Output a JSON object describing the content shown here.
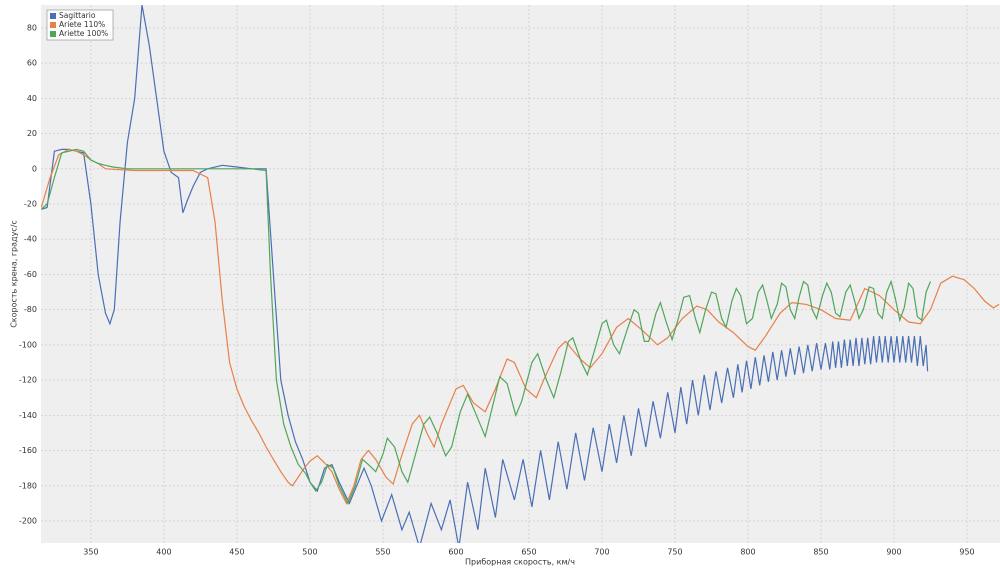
{
  "chart_data": {
    "type": "line",
    "xlabel": "Приборная скорость, км/ч",
    "ylabel": "Скорость крена, градус/с",
    "xlim": [
      315.8,
      972.6
    ],
    "ylim": [
      -212.5,
      93
    ],
    "xticks": [
      350,
      400,
      450,
      500,
      550,
      600,
      650,
      700,
      750,
      800,
      850,
      900,
      950
    ],
    "yticks": [
      -200,
      -180,
      -160,
      -140,
      -120,
      -100,
      -80,
      -60,
      -40,
      -20,
      0,
      20,
      40,
      60,
      80
    ],
    "grid": true,
    "legend": "top-left",
    "series": [
      {
        "name": "Sagittario",
        "color": "#4a6fb5",
        "x": [
          316,
          320,
          325,
          330,
          335,
          340,
          345,
          350,
          355,
          360,
          363,
          366,
          370,
          375,
          380,
          385,
          390,
          395,
          400,
          405,
          410,
          413,
          416,
          420,
          425,
          430,
          440,
          450,
          460,
          470,
          475,
          480,
          485,
          490,
          495,
          500,
          505,
          510,
          515,
          520,
          527,
          532,
          537,
          542,
          549,
          556,
          563,
          568,
          575,
          583,
          590,
          596,
          602,
          608,
          615,
          620,
          627,
          632,
          640,
          646,
          652,
          658,
          664,
          670,
          676,
          682,
          688,
          694,
          700,
          705,
          710,
          715,
          720,
          725,
          730,
          735,
          740,
          745,
          750,
          754,
          758,
          762,
          766,
          770,
          774,
          778,
          782,
          786,
          790,
          793,
          796,
          799,
          802,
          805,
          808,
          811,
          814,
          817,
          820,
          823,
          826,
          829,
          832,
          835,
          838,
          841,
          844,
          847,
          850,
          853,
          856,
          858,
          860,
          862,
          864,
          866,
          868,
          870,
          872,
          874,
          876,
          878,
          880,
          882,
          884,
          886,
          888,
          890,
          892,
          894,
          896,
          898,
          900,
          902,
          904,
          906,
          908,
          910,
          912,
          914,
          916,
          918,
          920,
          922,
          923
        ],
        "values": [
          -23,
          -22,
          10,
          11,
          11,
          10,
          9,
          -20,
          -60,
          -82,
          -88,
          -80,
          -30,
          15,
          40,
          93,
          70,
          40,
          10,
          -2,
          -5,
          -25,
          -18,
          -10,
          -2,
          0,
          2,
          1,
          0,
          0,
          -60,
          -120,
          -140,
          -155,
          -165,
          -178,
          -183,
          -170,
          -168,
          -178,
          -190,
          -180,
          -170,
          -180,
          -200,
          -185,
          -205,
          -195,
          -215,
          -190,
          -205,
          -188,
          -215,
          -178,
          -205,
          -170,
          -198,
          -165,
          -188,
          -165,
          -192,
          -160,
          -188,
          -155,
          -182,
          -150,
          -177,
          -147,
          -172,
          -145,
          -167,
          -140,
          -163,
          -136,
          -158,
          -132,
          -153,
          -127,
          -150,
          -124,
          -145,
          -120,
          -140,
          -117,
          -137,
          -115,
          -133,
          -113,
          -130,
          -111,
          -127,
          -109,
          -125,
          -107,
          -123,
          -106,
          -121,
          -104,
          -120,
          -103,
          -118,
          -102,
          -117,
          -101,
          -116,
          -100,
          -115,
          -99,
          -114,
          -99,
          -114,
          -98,
          -113,
          -98,
          -113,
          -97,
          -112,
          -97,
          -112,
          -96,
          -112,
          -96,
          -111,
          -96,
          -111,
          -95,
          -110,
          -95,
          -110,
          -95,
          -110,
          -95,
          -110,
          -95,
          -110,
          -95,
          -110,
          -95,
          -110,
          -95,
          -112,
          -95,
          -112,
          -100,
          -115
        ]
      },
      {
        "name": "Ariete 110%",
        "color": "#e8804a",
        "x": [
          316,
          322,
          328,
          335,
          340,
          345,
          350,
          355,
          360,
          380,
          420,
          430,
          435,
          440,
          445,
          450,
          455,
          460,
          465,
          470,
          475,
          480,
          485,
          488,
          492,
          496,
          500,
          505,
          510,
          515,
          520,
          525,
          530,
          535,
          540,
          545,
          552,
          557,
          562,
          570,
          575,
          580,
          585,
          590,
          600,
          605,
          612,
          620,
          627,
          635,
          640,
          648,
          655,
          660,
          670,
          675,
          685,
          692,
          700,
          710,
          718,
          728,
          738,
          745,
          755,
          765,
          772,
          780,
          790,
          800,
          805,
          812,
          822,
          830,
          840,
          850,
          860,
          870,
          880,
          890,
          900,
          910,
          918,
          925,
          932,
          940,
          948,
          955,
          962,
          968,
          972
        ],
        "values": [
          -22,
          -5,
          8,
          11,
          10,
          8,
          5,
          3,
          0,
          -1,
          -1,
          -5,
          -30,
          -75,
          -110,
          -125,
          -135,
          -143,
          -150,
          -158,
          -165,
          -172,
          -178,
          -180,
          -175,
          -170,
          -166,
          -163,
          -167,
          -172,
          -182,
          -190,
          -180,
          -165,
          -160,
          -165,
          -175,
          -179,
          -165,
          -145,
          -140,
          -150,
          -158,
          -145,
          -125,
          -123,
          -133,
          -138,
          -125,
          -108,
          -110,
          -125,
          -130,
          -120,
          -102,
          -98,
          -108,
          -113,
          -105,
          -90,
          -85,
          -92,
          -100,
          -96,
          -85,
          -78,
          -80,
          -87,
          -93,
          -101,
          -103,
          -95,
          -82,
          -76,
          -77,
          -80,
          -85,
          -86,
          -68,
          -72,
          -80,
          -87,
          -88,
          -80,
          -65,
          -61,
          -63,
          -68,
          -75,
          -79,
          -77
        ]
      },
      {
        "name": "Ariette 100%",
        "color": "#4fa65a",
        "x": [
          316,
          320,
          325,
          330,
          335,
          340,
          345,
          350,
          355,
          360,
          365,
          375,
          400,
          460,
          470,
          473,
          477,
          482,
          487,
          492,
          497,
          500,
          504,
          508,
          512,
          516,
          520,
          526,
          531,
          536,
          540,
          545,
          550,
          553,
          558,
          563,
          567,
          572,
          578,
          582,
          587,
          593,
          597,
          603,
          608,
          614,
          620,
          625,
          630,
          635,
          641,
          645,
          652,
          656,
          662,
          667,
          672,
          677,
          680,
          686,
          690,
          696,
          700,
          703,
          708,
          712,
          717,
          722,
          725,
          729,
          732,
          737,
          740,
          744,
          748,
          752,
          756,
          760,
          764,
          767,
          771,
          775,
          778,
          782,
          785,
          789,
          792,
          795,
          799,
          803,
          807,
          810,
          813,
          816,
          820,
          823,
          826,
          829,
          832,
          835,
          838,
          841,
          844,
          847,
          851,
          854,
          857,
          860,
          863,
          867,
          870,
          873,
          876,
          879,
          883,
          886,
          889,
          892,
          895,
          898,
          901,
          904,
          907,
          910,
          913,
          916,
          919,
          922,
          925
        ],
        "values": [
          -23,
          -20,
          -5,
          9,
          10,
          11,
          10,
          5,
          3,
          2,
          1,
          0,
          0,
          0,
          -1,
          -60,
          -120,
          -145,
          -158,
          -168,
          -173,
          -178,
          -183,
          -178,
          -168,
          -170,
          -180,
          -190,
          -180,
          -165,
          -168,
          -172,
          -162,
          -153,
          -158,
          -172,
          -178,
          -163,
          -145,
          -141,
          -150,
          -163,
          -158,
          -138,
          -128,
          -140,
          -152,
          -135,
          -118,
          -122,
          -140,
          -132,
          -110,
          -105,
          -120,
          -130,
          -115,
          -98,
          -96,
          -110,
          -117,
          -100,
          -88,
          -86,
          -100,
          -105,
          -92,
          -80,
          -82,
          -98,
          -98,
          -82,
          -76,
          -87,
          -97,
          -86,
          -73,
          -72,
          -85,
          -93,
          -80,
          -70,
          -71,
          -85,
          -90,
          -75,
          -68,
          -72,
          -88,
          -85,
          -70,
          -66,
          -75,
          -85,
          -77,
          -65,
          -67,
          -80,
          -85,
          -73,
          -64,
          -66,
          -80,
          -85,
          -72,
          -65,
          -70,
          -82,
          -84,
          -70,
          -66,
          -75,
          -85,
          -80,
          -67,
          -68,
          -82,
          -85,
          -70,
          -64,
          -74,
          -86,
          -79,
          -65,
          -68,
          -84,
          -86,
          -70,
          -64
        ]
      }
    ]
  }
}
